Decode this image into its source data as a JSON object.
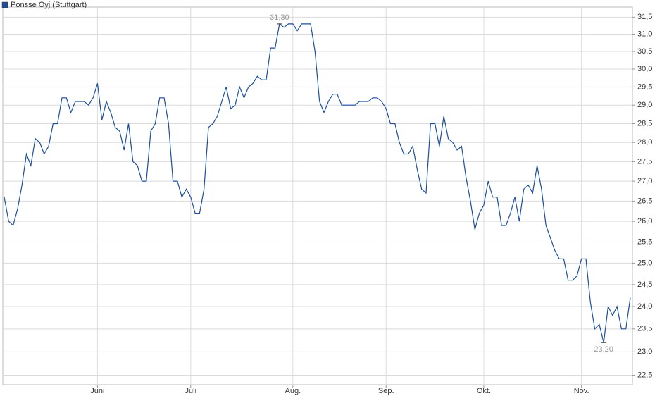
{
  "chart_data": {
    "type": "line",
    "y_scale": "log",
    "grid": true,
    "categories": [
      null,
      null,
      null,
      null,
      null,
      null,
      null,
      null,
      null,
      null,
      null,
      null,
      null,
      null,
      null,
      null,
      null,
      null,
      null,
      null,
      null,
      "Juni",
      null,
      null,
      null,
      null,
      null,
      null,
      null,
      null,
      null,
      null,
      null,
      null,
      null,
      null,
      null,
      null,
      null,
      null,
      null,
      null,
      "Juli",
      null,
      null,
      null,
      null,
      null,
      null,
      null,
      null,
      null,
      null,
      null,
      null,
      null,
      null,
      null,
      null,
      null,
      null,
      null,
      null,
      null,
      null,
      "Aug.",
      null,
      null,
      null,
      null,
      null,
      null,
      null,
      null,
      null,
      null,
      null,
      null,
      null,
      null,
      null,
      null,
      null,
      null,
      null,
      null,
      "Sep.",
      null,
      null,
      null,
      null,
      null,
      null,
      null,
      null,
      null,
      null,
      null,
      null,
      null,
      null,
      null,
      null,
      null,
      null,
      null,
      null,
      null,
      "Okt.",
      null,
      null,
      null,
      null,
      null,
      null,
      null,
      null,
      null,
      null,
      null,
      null,
      null,
      null,
      null,
      null,
      null,
      null,
      null,
      null,
      null,
      "Nov.",
      null,
      null,
      null,
      null,
      null,
      null,
      null,
      null,
      null,
      null,
      null
    ],
    "series": [
      {
        "name": "Ponsse Oyj (Stuttgart)",
        "color": "#1d4f9e",
        "values": [
          26.6,
          26.0,
          25.9,
          26.3,
          26.9,
          27.7,
          27.4,
          28.1,
          28.0,
          27.7,
          27.9,
          28.5,
          28.5,
          29.2,
          29.2,
          28.8,
          29.1,
          29.1,
          29.1,
          29.0,
          29.2,
          29.6,
          28.6,
          29.1,
          28.8,
          28.4,
          28.3,
          27.8,
          28.5,
          27.5,
          27.4,
          27.0,
          27.0,
          28.3,
          28.5,
          29.2,
          29.2,
          28.5,
          27.0,
          27.0,
          26.6,
          26.8,
          26.6,
          26.2,
          26.2,
          26.8,
          28.4,
          28.5,
          28.7,
          29.1,
          29.5,
          28.9,
          29.0,
          29.5,
          29.2,
          29.5,
          29.6,
          29.8,
          29.7,
          29.7,
          30.6,
          30.6,
          31.3,
          31.2,
          31.3,
          31.3,
          31.1,
          31.3,
          31.3,
          31.3,
          30.5,
          29.1,
          28.8,
          29.1,
          29.3,
          29.3,
          29.0,
          29.0,
          29.0,
          29.0,
          29.1,
          29.1,
          29.1,
          29.2,
          29.2,
          29.1,
          28.9,
          28.5,
          28.5,
          28.0,
          27.7,
          27.7,
          27.9,
          27.3,
          26.8,
          26.7,
          28.5,
          28.5,
          27.9,
          28.7,
          28.1,
          28.0,
          27.8,
          27.9,
          27.1,
          26.5,
          25.8,
          26.2,
          26.4,
          27.0,
          26.6,
          26.6,
          25.9,
          25.9,
          26.2,
          26.6,
          26.0,
          26.8,
          26.9,
          26.7,
          27.4,
          26.8,
          25.9,
          25.6,
          25.3,
          25.1,
          25.1,
          24.6,
          24.6,
          24.7,
          25.1,
          25.1,
          24.1,
          23.5,
          23.6,
          23.2,
          24.0,
          23.8,
          24.0,
          23.5,
          23.5,
          24.2
        ]
      }
    ],
    "annotations": [
      {
        "value": 31.3,
        "label": "31,30"
      },
      {
        "value": 23.2,
        "label": "23,20"
      }
    ],
    "ylim": [
      22.3,
      31.8
    ],
    "yticks": [
      {
        "value": 22.5,
        "label": "22,5"
      },
      {
        "value": 23,
        "label": "23,0"
      },
      {
        "value": 23.5,
        "label": "23,5"
      },
      {
        "value": 24,
        "label": "24,0"
      },
      {
        "value": 24.5,
        "label": "24,5"
      },
      {
        "value": 25,
        "label": "25,0"
      },
      {
        "value": 25.5,
        "label": "25,5"
      },
      {
        "value": 26,
        "label": "26,0"
      },
      {
        "value": 26.5,
        "label": "26,5"
      },
      {
        "value": 27,
        "label": "27,0"
      },
      {
        "value": 27.5,
        "label": "27,5"
      },
      {
        "value": 28,
        "label": "28,0"
      },
      {
        "value": 28.5,
        "label": "28,5"
      },
      {
        "value": 29,
        "label": "29,0"
      },
      {
        "value": 29.5,
        "label": "29,5"
      },
      {
        "value": 30,
        "label": "30,0"
      },
      {
        "value": 30.5,
        "label": "30,5"
      },
      {
        "value": 31,
        "label": "31,0"
      },
      {
        "value": 31.5,
        "label": "31,5"
      }
    ]
  }
}
